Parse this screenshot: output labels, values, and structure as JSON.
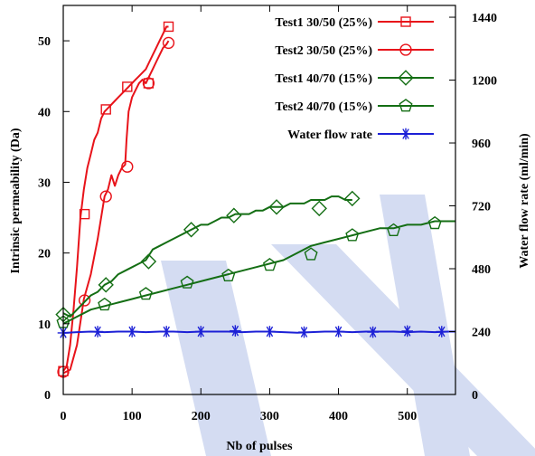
{
  "colors": {
    "test1_30_50": "#e8131a",
    "test2_30_50": "#e8131a",
    "test1_40_70": "#146e14",
    "test2_40_70": "#146e14",
    "water": "#1c20d6",
    "watermark": "#d4dcf2"
  },
  "chart_data": {
    "type": "line",
    "xlabel": "Nb of pulses",
    "ylabel": "Intrinsic permeability (Da)",
    "y2label": "Water flow rate (ml/min)",
    "xlim": [
      0,
      570
    ],
    "ylim": [
      0,
      55
    ],
    "y2lim": [
      0,
      1485
    ],
    "x_ticks": [
      "0",
      "100",
      "200",
      "300",
      "400",
      "500"
    ],
    "y_ticks": [
      "0",
      "10",
      "20",
      "30",
      "40",
      "50"
    ],
    "y2_ticks": [
      "0",
      "240",
      "480",
      "720",
      "960",
      "1200",
      "1440"
    ],
    "legend_position": "top-right",
    "series": [
      {
        "name": "Test1 30/50 (25%)",
        "marker": "square",
        "axis": "left",
        "x": [
          0,
          5,
          10,
          15,
          20,
          25,
          30,
          35,
          40,
          45,
          50,
          55,
          60,
          65,
          70,
          75,
          80,
          85,
          90,
          95,
          100,
          105,
          110,
          115,
          120,
          125,
          130,
          135,
          140,
          145,
          150,
          153
        ],
        "y": [
          3.3,
          4,
          7,
          12,
          18,
          25,
          29,
          32,
          34,
          36,
          37,
          39,
          40,
          40.5,
          41,
          41.5,
          42,
          42.5,
          43,
          43.5,
          44,
          44.5,
          45,
          45.5,
          46,
          47,
          48,
          49,
          50,
          51,
          52,
          52
        ],
        "marker_x": [
          0,
          31,
          62,
          93,
          124,
          153
        ],
        "marker_y": [
          3.3,
          25.5,
          40.3,
          43.5,
          44,
          52
        ]
      },
      {
        "name": "Test2 30/50 (25%)",
        "marker": "circle",
        "axis": "left",
        "x": [
          0,
          10,
          20,
          30,
          40,
          50,
          60,
          65,
          70,
          75,
          80,
          85,
          90,
          92,
          95,
          100,
          105,
          110,
          115,
          120,
          125,
          130,
          135,
          140,
          145,
          150,
          153
        ],
        "y": [
          3,
          3.5,
          7,
          13.5,
          17,
          22,
          28,
          29,
          31,
          29.5,
          31,
          32,
          32.5,
          36,
          40,
          42,
          43,
          44,
          44.5,
          44,
          45,
          46,
          47,
          48,
          49,
          49.5,
          50
        ],
        "marker_x": [
          0,
          31,
          62,
          93,
          124,
          153
        ],
        "marker_y": [
          3.2,
          13.3,
          28,
          32.2,
          44,
          49.7
        ]
      },
      {
        "name": "Test1 40/70 (15%)",
        "marker": "diamond",
        "axis": "left",
        "x": [
          0,
          10,
          20,
          30,
          40,
          50,
          60,
          70,
          80,
          90,
          100,
          110,
          120,
          130,
          140,
          150,
          160,
          170,
          180,
          190,
          200,
          210,
          220,
          230,
          240,
          250,
          260,
          270,
          280,
          290,
          300,
          310,
          320,
          330,
          340,
          350,
          360,
          370,
          380,
          390,
          400,
          410,
          420
        ],
        "y": [
          11.5,
          11,
          12,
          13,
          14,
          14.5,
          15.5,
          16,
          17,
          17.5,
          18,
          18.5,
          19,
          20.5,
          21,
          21.5,
          22,
          22.5,
          23,
          23.5,
          24,
          24,
          24.5,
          25,
          25,
          25.5,
          25.5,
          25.5,
          26,
          26,
          26.5,
          26.5,
          26.5,
          27,
          27,
          27,
          27.5,
          27.5,
          27.5,
          28,
          28,
          27.5,
          27.5
        ],
        "marker_x": [
          0,
          62,
          124,
          186,
          248,
          310,
          372,
          420
        ],
        "marker_y": [
          11.3,
          15.5,
          18.8,
          23.3,
          25.3,
          26.5,
          26.3,
          27.7
        ]
      },
      {
        "name": "Test2 40/70 (15%)",
        "marker": "pentagon",
        "axis": "left",
        "x": [
          0,
          20,
          40,
          60,
          80,
          100,
          120,
          140,
          160,
          180,
          200,
          220,
          240,
          260,
          280,
          300,
          320,
          340,
          360,
          380,
          400,
          420,
          440,
          460,
          480,
          500,
          520,
          540,
          560,
          570
        ],
        "y": [
          10,
          11,
          12,
          12.5,
          13,
          13.5,
          14,
          14.5,
          15,
          15.5,
          16,
          16.5,
          17,
          17.5,
          18,
          18.5,
          19,
          20,
          21,
          21.5,
          22,
          22.5,
          23,
          23.5,
          23.5,
          24,
          24,
          24.5,
          24.5,
          24.5
        ],
        "marker_x": [
          0,
          60,
          120,
          180,
          240,
          300,
          360,
          420,
          480,
          540
        ],
        "marker_y": [
          10.2,
          12.7,
          14.2,
          15.8,
          16.8,
          18.3,
          19.8,
          22.5,
          23.2,
          24.2
        ]
      },
      {
        "name": "Water flow rate",
        "marker": "asterisk",
        "axis": "right",
        "x": [
          0,
          20,
          40,
          60,
          80,
          100,
          120,
          140,
          160,
          180,
          200,
          220,
          240,
          260,
          280,
          300,
          320,
          340,
          360,
          380,
          400,
          420,
          440,
          460,
          480,
          500,
          520,
          540,
          560,
          570
        ],
        "y": [
          235,
          238,
          240,
          238,
          240,
          240,
          238,
          240,
          240,
          238,
          240,
          240,
          240,
          238,
          240,
          240,
          238,
          236,
          238,
          240,
          240,
          238,
          240,
          240,
          240,
          238,
          240,
          238,
          240,
          240
        ],
        "marker_x": [
          0,
          50,
          100,
          150,
          200,
          250,
          300,
          350,
          400,
          450,
          500,
          550
        ],
        "marker_y": [
          235,
          240,
          240,
          240,
          240,
          243,
          240,
          238,
          240,
          238,
          242,
          240
        ]
      }
    ]
  }
}
